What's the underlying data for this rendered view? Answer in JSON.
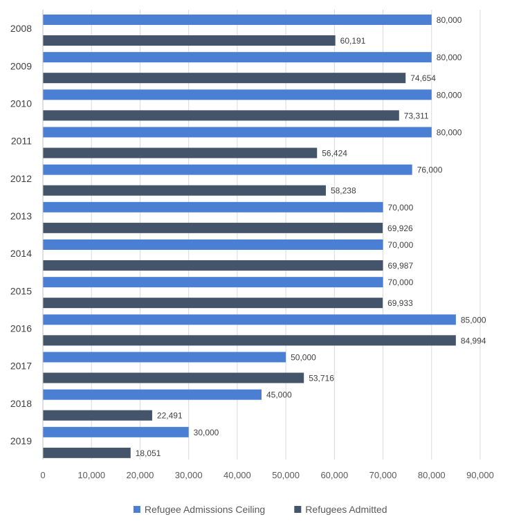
{
  "chart_data": {
    "type": "bar",
    "orientation": "horizontal",
    "categories": [
      "2008",
      "2009",
      "2010",
      "2011",
      "2012",
      "2013",
      "2014",
      "2015",
      "2016",
      "2017",
      "2018",
      "2019"
    ],
    "series": [
      {
        "name": "Refugee Admissions Ceiling",
        "color": "#4a7fd4",
        "values": [
          80000,
          80000,
          80000,
          80000,
          76000,
          70000,
          70000,
          70000,
          85000,
          50000,
          45000,
          30000
        ],
        "labels": [
          "80,000",
          "80,000",
          "80,000",
          "80,000",
          "76,000",
          "70,000",
          "70,000",
          "70,000",
          "85,000",
          "50,000",
          "45,000",
          "30,000"
        ]
      },
      {
        "name": "Refugees Admitted",
        "color": "#44546a",
        "values": [
          60191,
          74654,
          73311,
          56424,
          58238,
          69926,
          69987,
          69933,
          84994,
          53716,
          22491,
          18051
        ],
        "labels": [
          "60,191",
          "74,654",
          "73,311",
          "56,424",
          "58,238",
          "69,926",
          "69,987",
          "69,933",
          "84,994",
          "53,716",
          "22,491",
          "18,051"
        ]
      }
    ],
    "xlim": [
      0,
      90000
    ],
    "x_ticks": [
      0,
      10000,
      20000,
      30000,
      40000,
      50000,
      60000,
      70000,
      80000,
      90000
    ],
    "x_tick_labels": [
      "0",
      "10,000",
      "20,000",
      "30,000",
      "40,000",
      "50,000",
      "60,000",
      "70,000",
      "80,000",
      "90,000"
    ],
    "grid": "vertical",
    "legend_position": "bottom",
    "title": "",
    "xlabel": "",
    "ylabel": ""
  }
}
